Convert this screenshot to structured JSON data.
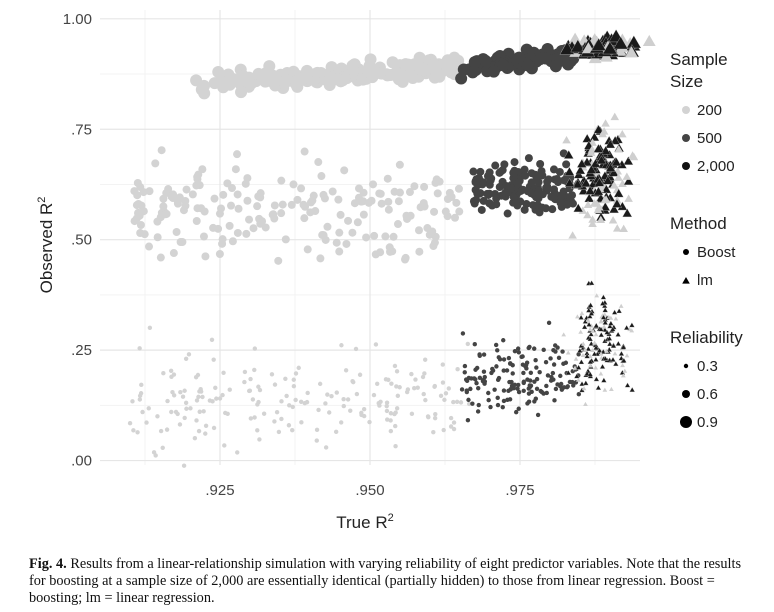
{
  "chart_data": {
    "type": "scatter",
    "xlabel": "True R",
    "xlabel_superscript": "2",
    "ylabel": "Observed R",
    "ylabel_superscript": "2",
    "xlim": [
      0.905,
      0.995
    ],
    "ylim": [
      -0.01,
      1.02
    ],
    "x_ticks": [
      0.925,
      0.95,
      0.975
    ],
    "x_tick_labels": [
      ".925",
      ".950",
      ".975"
    ],
    "y_ticks": [
      0.0,
      0.25,
      0.5,
      0.75,
      1.0
    ],
    "y_tick_labels": [
      ".00",
      ".25",
      ".50",
      ".75",
      "1.00"
    ],
    "grid": true,
    "legend_position": "right",
    "legends": [
      {
        "title_lines": [
          "Sample",
          "Size"
        ],
        "entries": [
          "200",
          "500",
          "2,000"
        ],
        "kind": "color",
        "colors": [
          "#d3d3d3",
          "#444444",
          "#111111"
        ]
      },
      {
        "title_lines": [
          "Method"
        ],
        "entries": [
          "Boost",
          "lm"
        ],
        "kind": "shape",
        "shapes": [
          "circle",
          "triangle"
        ]
      },
      {
        "title_lines": [
          "Reliability"
        ],
        "entries": [
          "0.3",
          "0.6",
          "0.9"
        ],
        "kind": "size",
        "sizes": [
          2.2,
          4,
          6
        ]
      }
    ],
    "clusters": [
      {
        "sample_size": "200",
        "method": "Boost",
        "reliability": "0.9",
        "color": "#d3d3d3",
        "n": 170,
        "x_range": [
          0.92,
          0.965
        ],
        "y_center": 0.875,
        "y_spread": 0.012,
        "x_trend": 0.8
      },
      {
        "sample_size": "500",
        "method": "Boost",
        "reliability": "0.9",
        "color": "#444444",
        "n": 110,
        "x_range": [
          0.965,
          0.984
        ],
        "y_center": 0.905,
        "y_spread": 0.01,
        "x_trend": 0.9
      },
      {
        "sample_size": "2,000",
        "method": "lm",
        "reliability": "0.9",
        "color": "#1a1a1a",
        "n": 60,
        "x_center": 0.9885,
        "x_spread": 0.0025,
        "y_center": 0.935,
        "y_spread": 0.008
      },
      {
        "sample_size": "200",
        "method": "Boost",
        "reliability": "0.6",
        "color": "#d3d3d3",
        "n": 200,
        "x_range": [
          0.91,
          0.965
        ],
        "y_center": 0.565,
        "y_spread": 0.05
      },
      {
        "sample_size": "500",
        "method": "Boost",
        "reliability": "0.6",
        "color": "#444444",
        "n": 150,
        "x_range": [
          0.967,
          0.984
        ],
        "y_center": 0.62,
        "y_spread": 0.03
      },
      {
        "sample_size": "2,000",
        "method": "lm",
        "reliability": "0.6",
        "color": "#1a1a1a",
        "n": 90,
        "x_center": 0.9885,
        "x_spread": 0.0022,
        "y_center": 0.65,
        "y_spread": 0.05
      },
      {
        "sample_size": "200",
        "method": "Boost",
        "reliability": "0.3",
        "color": "#d3d3d3",
        "n": 200,
        "x_range": [
          0.91,
          0.967
        ],
        "y_center": 0.14,
        "y_spread": 0.055
      },
      {
        "sample_size": "500",
        "method": "Boost",
        "reliability": "0.3",
        "color": "#444444",
        "n": 160,
        "x_range": [
          0.965,
          0.985
        ],
        "y_center": 0.19,
        "y_spread": 0.04
      },
      {
        "sample_size": "2,000",
        "method": "lm",
        "reliability": "0.3",
        "color": "#1a1a1a",
        "n": 110,
        "x_center": 0.9885,
        "x_spread": 0.0022,
        "y_center": 0.26,
        "y_spread": 0.05
      }
    ]
  },
  "caption": {
    "figure_number": "Fig. 4.",
    "text": "Results from a linear-relationship simulation with varying reliability of eight predictor variables. Note that the results for boosting at a sample size of 2,000 are essentially identical (partially hidden) to those from linear regression. Boost = boosting; lm = linear regression."
  }
}
